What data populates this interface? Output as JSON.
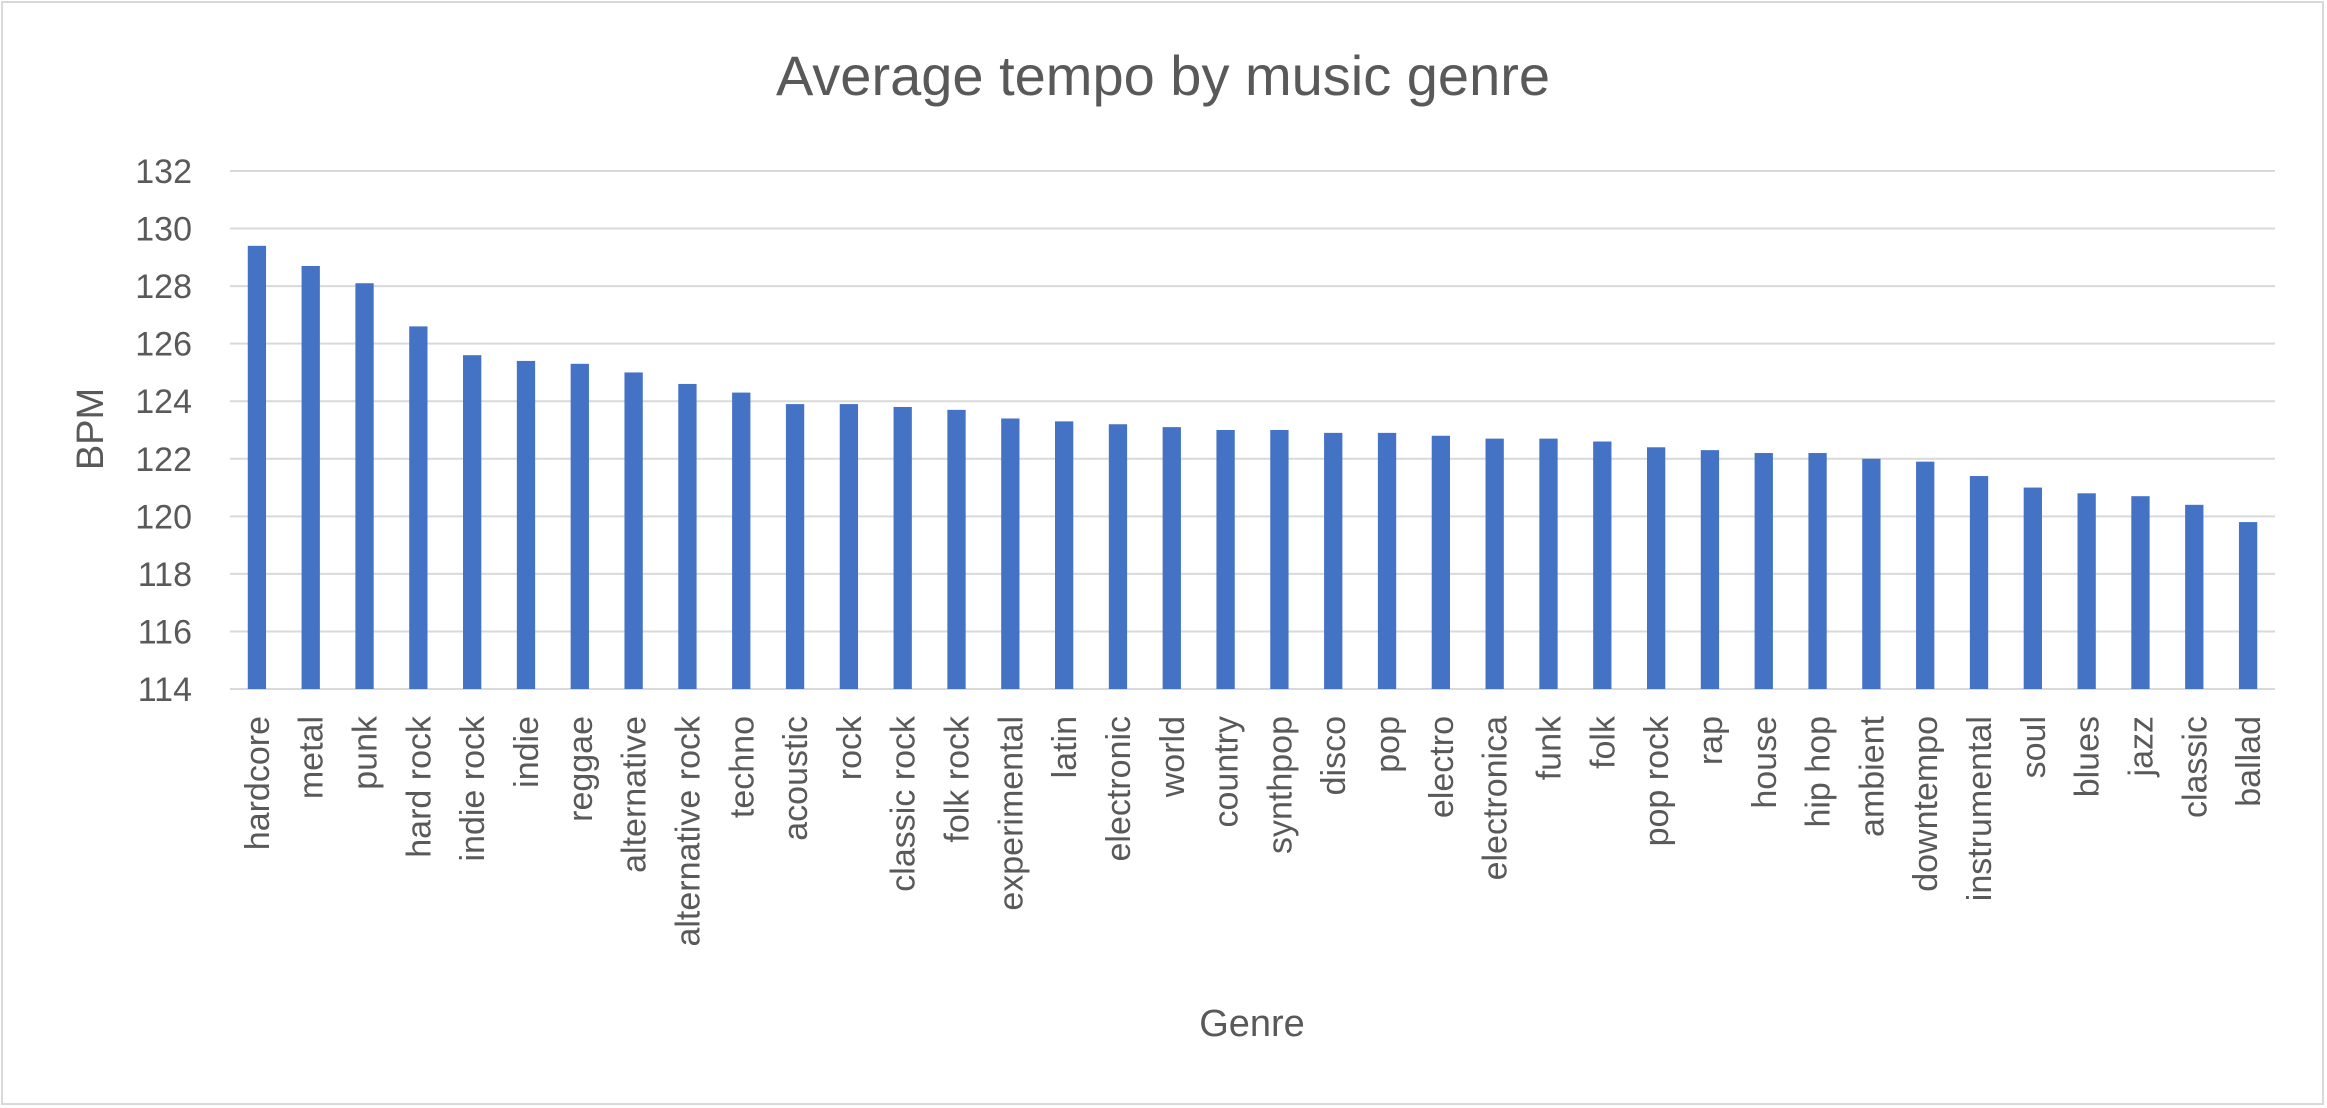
{
  "chart_data": {
    "type": "bar",
    "title": "Average tempo by music genre",
    "xlabel": "Genre",
    "ylabel": "BPM",
    "ylim": [
      114,
      132
    ],
    "yticks": [
      114,
      116,
      118,
      120,
      122,
      124,
      126,
      128,
      130,
      132
    ],
    "grid": true,
    "bar_color": "#4472c4",
    "categories": [
      "hardcore",
      "metal",
      "punk",
      "hard rock",
      "indie rock",
      "indie",
      "reggae",
      "alternative",
      "alternative rock",
      "techno",
      "acoustic",
      "rock",
      "classic rock",
      "folk rock",
      "experimental",
      "latin",
      "electronic",
      "world",
      "country",
      "synthpop",
      "disco",
      "pop",
      "electro",
      "electronica",
      "funk",
      "folk",
      "pop rock",
      "rap",
      "house",
      "hip hop",
      "ambient",
      "downtempo",
      "instrumental",
      "soul",
      "blues",
      "jazz",
      "classic",
      "ballad"
    ],
    "values": [
      129.4,
      128.7,
      128.1,
      126.6,
      125.6,
      125.4,
      125.3,
      125.0,
      124.6,
      124.3,
      123.9,
      123.9,
      123.8,
      123.7,
      123.4,
      123.3,
      123.2,
      123.1,
      123.0,
      123.0,
      122.9,
      122.9,
      122.8,
      122.7,
      122.7,
      122.6,
      122.4,
      122.3,
      122.2,
      122.2,
      122.0,
      121.9,
      121.4,
      121.0,
      120.8,
      120.7,
      120.4,
      119.8
    ]
  }
}
